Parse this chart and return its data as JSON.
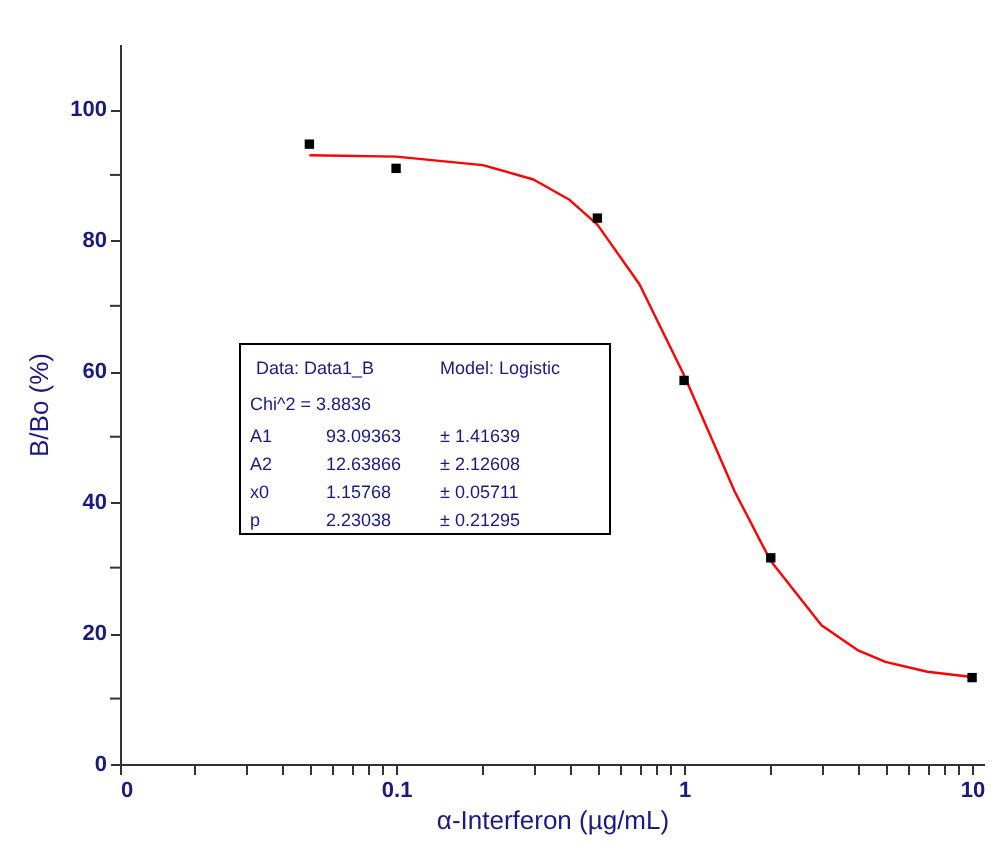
{
  "chart_data": {
    "type": "scatter",
    "xlabel": "α-Interferon (µg/mL)",
    "ylabel": "B/Bo (%)",
    "log": "x",
    "xlim": [
      0.011,
      11
    ],
    "ylim": [
      0,
      110
    ],
    "xticks": [
      {
        "value": 0.011,
        "label": "0"
      },
      {
        "value": 0.02,
        "label": null
      },
      {
        "value": 0.03,
        "label": null
      },
      {
        "value": 0.04,
        "label": null
      },
      {
        "value": 0.05,
        "label": null
      },
      {
        "value": 0.06,
        "label": null
      },
      {
        "value": 0.07,
        "label": null
      },
      {
        "value": 0.08,
        "label": null
      },
      {
        "value": 0.09,
        "label": null
      },
      0.1,
      {
        "value": 0.2,
        "label": null
      },
      {
        "value": 0.3,
        "label": null
      },
      {
        "value": 0.4,
        "label": null
      },
      {
        "value": 0.5,
        "label": null
      },
      {
        "value": 0.6,
        "label": null
      },
      {
        "value": 0.7,
        "label": null
      },
      {
        "value": 0.8,
        "label": null
      },
      {
        "value": 0.9,
        "label": null
      },
      1,
      {
        "value": 2,
        "label": null
      },
      {
        "value": 3,
        "label": null
      },
      {
        "value": 4,
        "label": null
      },
      {
        "value": 5,
        "label": null
      },
      {
        "value": 6,
        "label": null
      },
      {
        "value": 7,
        "label": null
      },
      {
        "value": 8,
        "label": null
      },
      {
        "value": 9,
        "label": null
      },
      10
    ],
    "yticks": [
      0,
      {
        "value": 10,
        "label": null
      },
      20,
      {
        "value": 30,
        "label": null
      },
      40,
      {
        "value": 50,
        "label": null
      },
      60,
      {
        "value": 70,
        "label": null
      },
      80,
      {
        "value": 90,
        "label": null
      },
      100
    ],
    "grid": false,
    "series": [
      {
        "type": "line",
        "color": "#ff0000",
        "marker": "none",
        "line_style": "solid",
        "x": [
          0.05,
          0.1,
          0.2,
          0.3,
          0.4,
          0.5,
          0.7,
          1,
          1.5,
          2,
          3,
          4,
          5,
          7,
          10
        ],
        "values": [
          93.0,
          92.8,
          91.5,
          89.3,
          86.2,
          82.4,
          73.3,
          59.4,
          41.6,
          31.0,
          21.2,
          17.4,
          15.6,
          14.1,
          13.3
        ]
      },
      {
        "color": "#000000",
        "marker": "square",
        "x": [
          0.05,
          0.1,
          0.5,
          1,
          2,
          10
        ],
        "values": [
          94.7,
          91.0,
          83.4,
          58.6,
          31.5,
          13.2
        ]
      }
    ],
    "annotations": [
      "Data: Data1_B",
      "Model: Logistic",
      "Chi^2 = 3.8836",
      "A1",
      "93.09363",
      "± 1.41639",
      "A2",
      "12.63866",
      "± 2.12608",
      "x0",
      "1.15768",
      "± 0.05711",
      "p",
      "2.23038",
      "± 0.21295"
    ]
  }
}
